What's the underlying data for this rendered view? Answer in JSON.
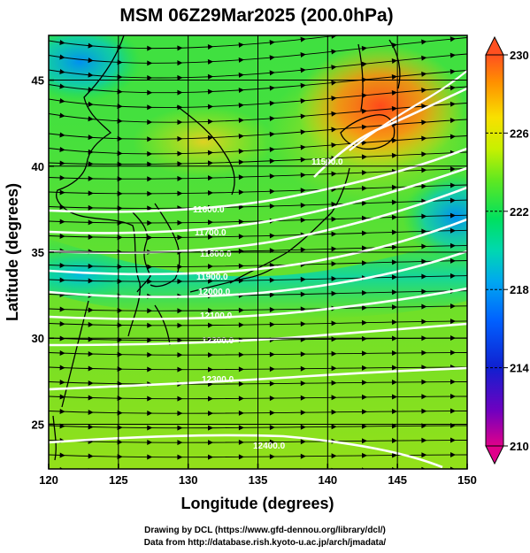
{
  "title": "MSM 06Z29Mar2025 (200.0hPa)",
  "x_axis": {
    "label": "Longitude (degrees)",
    "ticks": [
      "120",
      "125",
      "130",
      "135",
      "140",
      "145",
      "150"
    ],
    "range": [
      120,
      150
    ]
  },
  "y_axis": {
    "label": "Latitude  (degrees)",
    "ticks": [
      "25",
      "30",
      "35",
      "40",
      "45"
    ],
    "range": [
      22.4,
      47.6
    ]
  },
  "colorbar": {
    "ticks": [
      "230",
      "226",
      "222",
      "218",
      "214",
      "210"
    ],
    "range": [
      210,
      230
    ],
    "colors": [
      "#e0008a",
      "#7000c0",
      "#1020d0",
      "#0060ff",
      "#00a8f0",
      "#00d8b0",
      "#00e060",
      "#60e820",
      "#c8f000",
      "#f8e000",
      "#ff9000",
      "#ff5020"
    ]
  },
  "contours": [
    {
      "label": "11600.0"
    },
    {
      "label": "11700.0"
    },
    {
      "label": "11800.0"
    },
    {
      "label": "11900.0"
    },
    {
      "label": "12000.0"
    },
    {
      "label": "12100.0"
    },
    {
      "label": "12200.0"
    },
    {
      "label": "12300.0"
    },
    {
      "label": "12400.0"
    },
    {
      "label": "11500.0"
    }
  ],
  "credits": {
    "line1": "Drawing by DCL (https://www.gfd-dennou.org/library/dcl/)",
    "line2": "Data from http://database.rish.kyoto-u.ac.jp/arch/jmadata/"
  }
}
